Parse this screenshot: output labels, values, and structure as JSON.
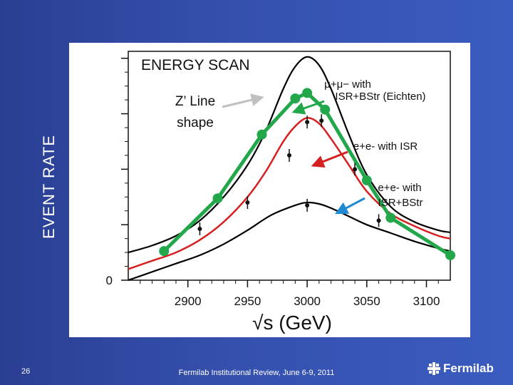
{
  "slide": {
    "page_number": "26",
    "footer": "Fermilab Institutional Review, June 6-9, 2011",
    "logo_text": "Fermilab",
    "logo_icon": "fermilab-star-icon"
  },
  "chart_data": {
    "type": "line",
    "title": "ENERGY SCAN",
    "ylabel": "EVENT RATE",
    "xlabel": "√s (GeV)",
    "xlim": [
      2850,
      3120
    ],
    "ylim": [
      0,
      1650
    ],
    "x_ticks": [
      2900,
      2950,
      3000,
      3050,
      3100
    ],
    "y_ticks": [
      0,
      400,
      800,
      1200,
      1600
    ],
    "grid": false,
    "annotations": [
      {
        "text": "Z’ Line shape",
        "line1": "Z’ Line",
        "line2": "shape"
      },
      {
        "text": "μ+μ− with ISR+BStr (Eichten)",
        "line1": "μ+μ− with",
        "line2": "ISR+BStr (Eichten)"
      },
      {
        "text": "e+e- with ISR",
        "line1": "e+e- with ISR"
      },
      {
        "text": "e+e- with ISR+BStr",
        "line1": "e+e- with",
        "line2": "ISR+BStr"
      }
    ],
    "series": [
      {
        "color": "#000000",
        "x": [
          2850,
          2870,
          2890,
          2910,
          2930,
          2950,
          2965,
          2980,
          2990,
          3000,
          3010,
          3020,
          3035,
          3050,
          3070,
          3090,
          3110,
          3120
        ],
        "values": [
          200,
          250,
          320,
          430,
          600,
          830,
          1070,
          1380,
          1540,
          1610,
          1550,
          1380,
          1050,
          760,
          530,
          420,
          360,
          345
        ]
      },
      {
        "color": "#d62020",
        "x": [
          2850,
          2870,
          2890,
          2910,
          2930,
          2950,
          2965,
          2980,
          2990,
          3000,
          3010,
          3020,
          3035,
          3050,
          3070,
          3090,
          3110,
          3120
        ],
        "values": [
          80,
          140,
          200,
          290,
          420,
          600,
          780,
          1000,
          1110,
          1170,
          1130,
          1020,
          830,
          640,
          480,
          390,
          320,
          300
        ]
      },
      {
        "color": "#000000",
        "x": [
          2850,
          2870,
          2890,
          2910,
          2930,
          2950,
          2970,
          2990,
          3000,
          3010,
          3020,
          3035,
          3050,
          3070,
          3090,
          3110,
          3120
        ],
        "values": [
          0,
          60,
          120,
          180,
          260,
          360,
          470,
          540,
          560,
          550,
          520,
          460,
          400,
          340,
          280,
          230,
          210
        ]
      },
      {
        "color": "#22a84a",
        "x": [
          2880,
          2925,
          2962,
          2990,
          3000,
          3015,
          3050,
          3070,
          3120
        ],
        "values": [
          210,
          590,
          1050,
          1310,
          1350,
          1230,
          720,
          450,
          180
        ]
      }
    ],
    "error_points": [
      {
        "x": 2910,
        "y": 370
      },
      {
        "x": 2950,
        "y": 560
      },
      {
        "x": 2985,
        "y": 900
      },
      {
        "x": 3000,
        "y": 1140
      },
      {
        "x": 3012,
        "y": 1150
      },
      {
        "x": 3040,
        "y": 800
      },
      {
        "x": 3000,
        "y": 540
      },
      {
        "x": 3060,
        "y": 430
      }
    ],
    "arrows": [
      {
        "color": "#c0c0c0"
      },
      {
        "color": "#22a84a"
      },
      {
        "color": "#d62020"
      },
      {
        "color": "#1f8ad1"
      }
    ]
  }
}
